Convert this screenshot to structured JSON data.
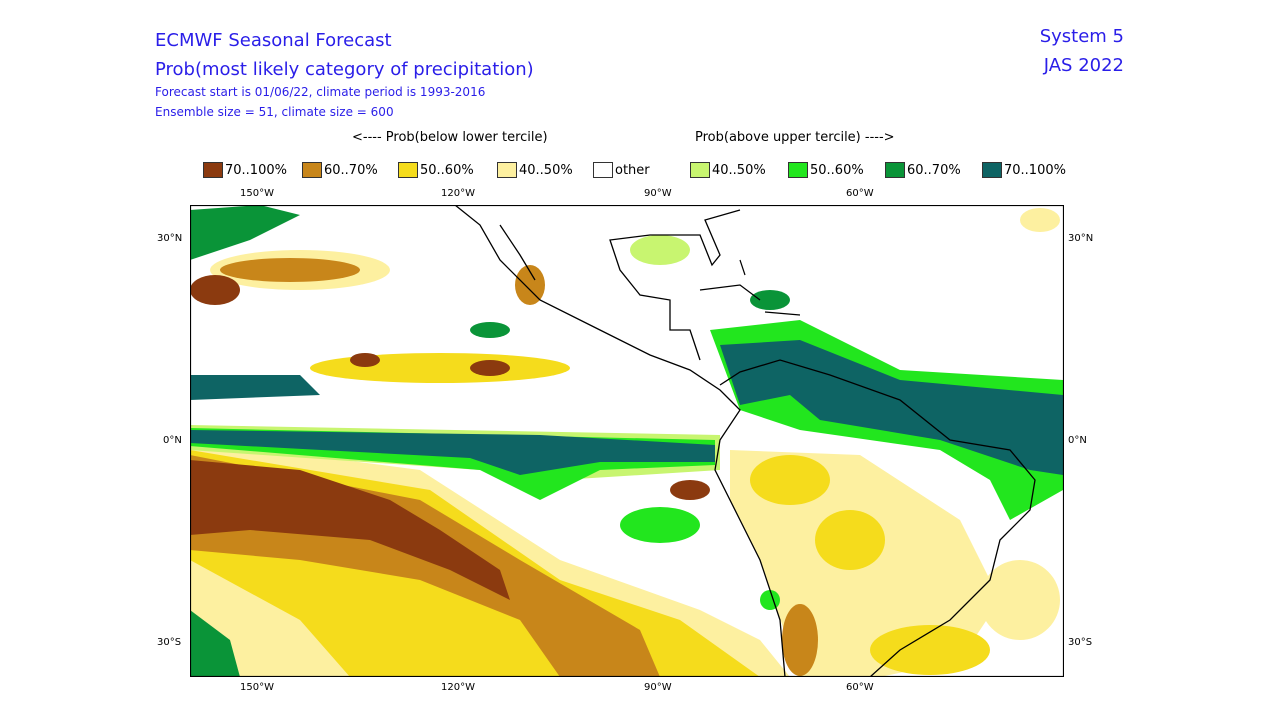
{
  "header": {
    "title": "ECMWF Seasonal Forecast",
    "subtitle": "Prob(most likely category of precipitation)",
    "line3": "Forecast start is 01/06/22, climate period is 1993-2016",
    "line4": "Ensemble size = 51, climate size = 600",
    "system": "System 5",
    "period": "JAS 2022"
  },
  "legend": {
    "below_caption": "<---- Prob(below lower tercile)",
    "above_caption": "Prob(above upper tercile) ---->",
    "items": [
      {
        "label": "70..100%",
        "color": "#8b3a0f"
      },
      {
        "label": "60..70%",
        "color": "#c8861a"
      },
      {
        "label": "50..60%",
        "color": "#f5dc1c"
      },
      {
        "label": "40..50%",
        "color": "#fdf0a0"
      },
      {
        "label": "other",
        "color": "#ffffff"
      },
      {
        "label": "40..50%",
        "color": "#c8f570"
      },
      {
        "label": "50..60%",
        "color": "#22e61e"
      },
      {
        "label": "60..70%",
        "color": "#0a9438"
      },
      {
        "label": "70..100%",
        "color": "#0e6464"
      }
    ]
  },
  "axes": {
    "lon": [
      "150°W",
      "120°W",
      "90°W",
      "60°W"
    ],
    "lat_left": [
      "30°N",
      "0°N",
      "30°S"
    ],
    "lat_right": [
      "30°N",
      "0°N",
      "30°S"
    ]
  }
}
